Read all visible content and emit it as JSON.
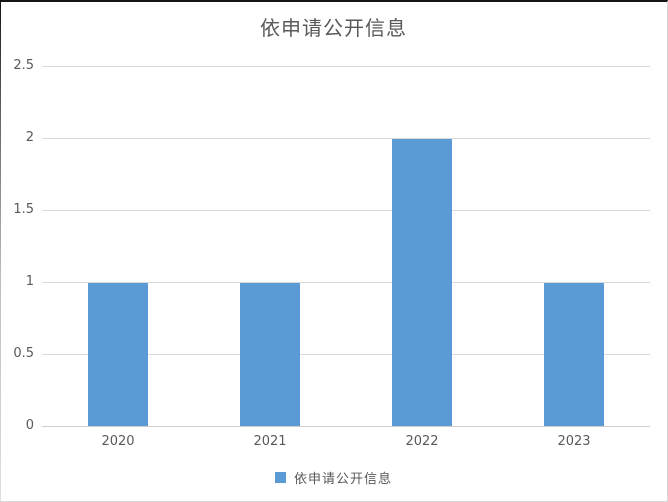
{
  "chart": {
    "title": "依申请公开信息",
    "legend_label": "依申请公开信息"
  },
  "chart_data": {
    "type": "bar",
    "title": "依申请公开信息",
    "categories": [
      "2020",
      "2021",
      "2022",
      "2023"
    ],
    "series": [
      {
        "name": "依申请公开信息",
        "values": [
          1,
          1,
          2,
          1
        ]
      }
    ],
    "xlabel": "",
    "ylabel": "",
    "ylim": [
      0,
      2.5
    ],
    "yticks": [
      0,
      0.5,
      1,
      1.5,
      2,
      2.5
    ],
    "grid": true,
    "legend_position": "bottom",
    "colors": {
      "bar": "#5b9bd5",
      "gridline": "#d9d9d9",
      "axis_text": "#595959",
      "title_text": "#595959"
    }
  }
}
